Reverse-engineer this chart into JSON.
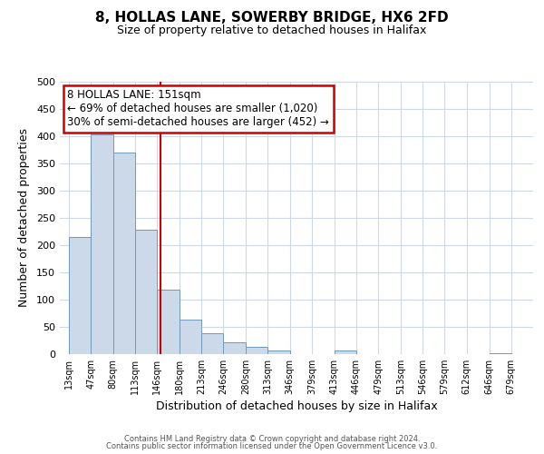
{
  "title": "8, HOLLAS LANE, SOWERBY BRIDGE, HX6 2FD",
  "subtitle": "Size of property relative to detached houses in Halifax",
  "xlabel": "Distribution of detached houses by size in Halifax",
  "ylabel": "Number of detached properties",
  "bar_left_edges": [
    13,
    47,
    80,
    113,
    146,
    180,
    213,
    246,
    280,
    313,
    346,
    379,
    413,
    446,
    479,
    513,
    546,
    579,
    612,
    646
  ],
  "bar_heights": [
    215,
    403,
    370,
    229,
    119,
    63,
    39,
    21,
    14,
    6,
    0,
    0,
    7,
    0,
    0,
    0,
    0,
    0,
    0,
    2
  ],
  "bar_widths": [
    34,
    33,
    33,
    33,
    34,
    33,
    33,
    34,
    33,
    33,
    33,
    34,
    33,
    33,
    34,
    33,
    33,
    33,
    34,
    33
  ],
  "tick_labels": [
    "13sqm",
    "47sqm",
    "80sqm",
    "113sqm",
    "146sqm",
    "180sqm",
    "213sqm",
    "246sqm",
    "280sqm",
    "313sqm",
    "346sqm",
    "379sqm",
    "413sqm",
    "446sqm",
    "479sqm",
    "513sqm",
    "546sqm",
    "579sqm",
    "612sqm",
    "646sqm",
    "679sqm"
  ],
  "tick_positions": [
    13,
    47,
    80,
    113,
    146,
    180,
    213,
    246,
    280,
    313,
    346,
    379,
    413,
    446,
    479,
    513,
    546,
    579,
    612,
    646,
    679
  ],
  "ylim": [
    0,
    500
  ],
  "xlim": [
    0,
    712
  ],
  "bar_color": "#ccd9e8",
  "bar_edge_color": "#7099bb",
  "marker_x": 151,
  "marker_color": "#cc0000",
  "annotation_title": "8 HOLLAS LANE: 151sqm",
  "annotation_line1": "← 69% of detached houses are smaller (1,020)",
  "annotation_line2": "30% of semi-detached houses are larger (452) →",
  "annotation_box_color": "#cc0000",
  "footer_line1": "Contains HM Land Registry data © Crown copyright and database right 2024.",
  "footer_line2": "Contains public sector information licensed under the Open Government Licence v3.0.",
  "grid_color": "#d0d8e8",
  "yticks": [
    0,
    50,
    100,
    150,
    200,
    250,
    300,
    350,
    400,
    450,
    500
  ]
}
